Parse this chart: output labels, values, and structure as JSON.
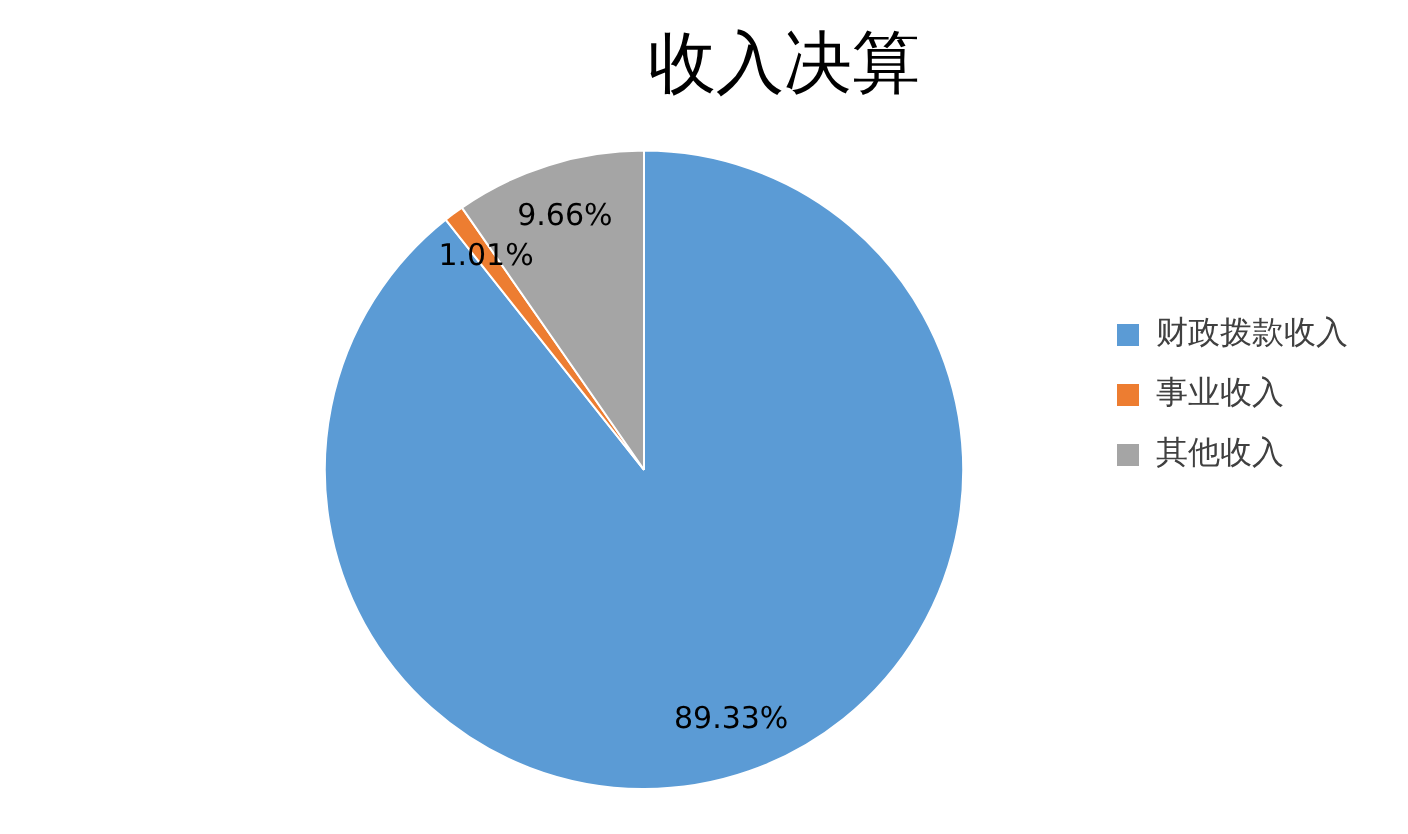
{
  "chart_data": {
    "type": "pie",
    "title": "收入决算",
    "categories": [
      "财政拨款收入",
      "事业收入",
      "其他收入"
    ],
    "values": [
      89.33,
      1.01,
      9.66
    ],
    "colors": [
      "#5b9bd5",
      "#ed7d31",
      "#a5a5a5"
    ],
    "value_labels": [
      "89.33%",
      "1.01%",
      "9.66%"
    ],
    "legend": "right"
  }
}
